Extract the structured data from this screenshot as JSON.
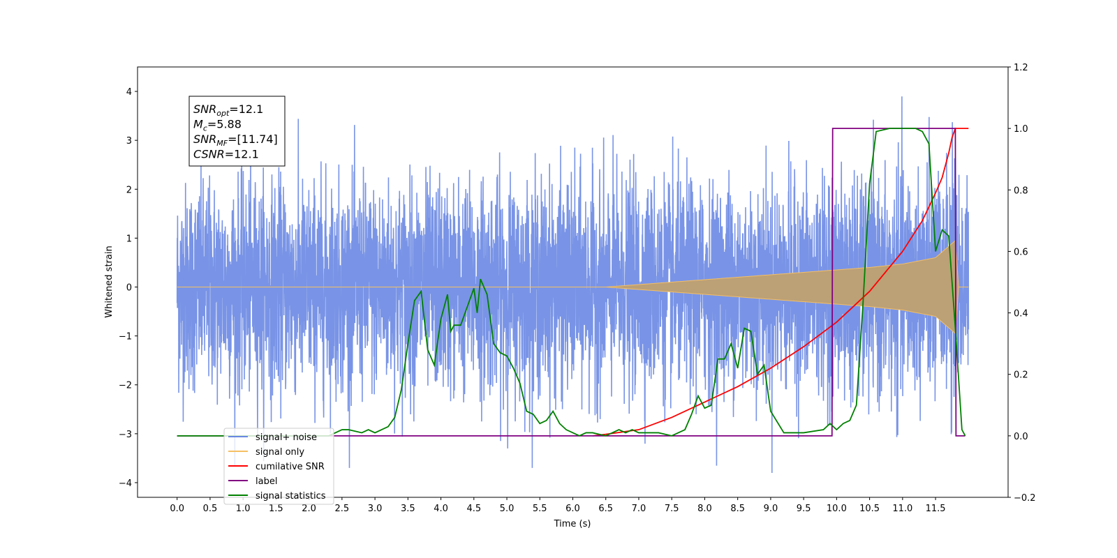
{
  "chart_data": {
    "type": "line",
    "title": "",
    "xlabel": "Time (s)",
    "ylabel": "Whitened strain",
    "xlim": [
      -0.6,
      12.6
    ],
    "ylim": [
      -4.3,
      4.5
    ],
    "ylim_right": [
      -0.2,
      1.2
    ],
    "x_ticks": [
      "0.0",
      "0.5",
      "1.0",
      "1.5",
      "2.0",
      "2.5",
      "3.0",
      "3.5",
      "4.0",
      "4.5",
      "5.0",
      "5.5",
      "6.0",
      "6.5",
      "7.0",
      "7.5",
      "8.0",
      "8.5",
      "9.0",
      "9.5",
      "10.0",
      "10.5",
      "11.0",
      "11.5"
    ],
    "y_ticks_left": [
      "4",
      "3",
      "2",
      "1",
      "0",
      "−1",
      "−2",
      "−3",
      "−4"
    ],
    "y_ticks_right": [
      "1.2",
      "1.0",
      "0.8",
      "0.6",
      "0.4",
      "0.2",
      "0.0",
      "−0.2"
    ],
    "grid": false,
    "legend_position": "lower-left",
    "colors": {
      "signal_noise": "#6a88e3",
      "signal_only": "#f5bf63",
      "cumulative_snr": "#ff0000",
      "label": "#800080",
      "signal_statistics": "#008000"
    },
    "annotation": [
      {
        "base": "SNR",
        "sub": "opt",
        "value": "=12.1"
      },
      {
        "base": "M",
        "sub": "c",
        "value": "=5.88"
      },
      {
        "base": "SNR",
        "sub": "MF",
        "value": "=[11.74]"
      },
      {
        "base": "CSNR",
        "sub": "",
        "value": "=12.1"
      }
    ],
    "series": [
      {
        "name": "signal+ noise",
        "axis": "left",
        "note": "dense noisy waveform",
        "x_range": [
          0.0,
          12.0
        ],
        "envelope_values": [
          -3.7,
          4.1
        ]
      },
      {
        "name": "signal only",
        "axis": "left",
        "note": "chirp starting ~6.5 s, amplitude growing to peak ~11.8 s",
        "x": [
          0.0,
          6.5,
          7.0,
          7.5,
          8.0,
          8.5,
          9.0,
          9.5,
          10.0,
          10.5,
          11.0,
          11.5,
          11.8,
          11.85,
          12.0
        ],
        "amplitude": [
          0.0,
          0.0,
          0.05,
          0.1,
          0.15,
          0.2,
          0.25,
          0.3,
          0.35,
          0.4,
          0.47,
          0.6,
          0.95,
          0.0,
          0.0
        ]
      },
      {
        "name": "cumilative SNR",
        "axis": "right",
        "x": [
          6.3,
          6.5,
          7.0,
          7.5,
          8.0,
          8.5,
          9.0,
          9.5,
          10.0,
          10.5,
          11.0,
          11.3,
          11.5,
          11.6,
          11.7,
          11.75,
          11.8,
          12.0
        ],
        "y": [
          0.0,
          0.005,
          0.02,
          0.06,
          0.11,
          0.16,
          0.22,
          0.29,
          0.37,
          0.47,
          0.6,
          0.7,
          0.79,
          0.84,
          0.92,
          0.97,
          1.0,
          1.0
        ]
      },
      {
        "name": "label",
        "axis": "right",
        "x": [
          0.0,
          9.93,
          9.94,
          11.8,
          11.81,
          11.95
        ],
        "y": [
          0.0,
          0.0,
          1.0,
          1.0,
          0.0,
          0.0
        ]
      },
      {
        "name": "signal statistics",
        "axis": "right",
        "x": [
          0.0,
          1.5,
          2.3,
          2.5,
          2.6,
          2.8,
          2.9,
          3.0,
          3.1,
          3.2,
          3.3,
          3.4,
          3.5,
          3.6,
          3.7,
          3.8,
          3.9,
          4.0,
          4.1,
          4.15,
          4.2,
          4.3,
          4.4,
          4.5,
          4.55,
          4.6,
          4.7,
          4.8,
          4.9,
          5.0,
          5.1,
          5.2,
          5.3,
          5.4,
          5.5,
          5.6,
          5.7,
          5.8,
          5.9,
          6.0,
          6.1,
          6.2,
          6.3,
          6.5,
          6.7,
          6.8,
          6.9,
          7.0,
          7.3,
          7.5,
          7.7,
          7.8,
          7.9,
          8.0,
          8.1,
          8.2,
          8.3,
          8.4,
          8.5,
          8.6,
          8.7,
          8.8,
          8.9,
          9.0,
          9.2,
          9.5,
          9.8,
          9.9,
          10.0,
          10.1,
          10.2,
          10.3,
          10.4,
          10.5,
          10.6,
          10.8,
          11.0,
          11.2,
          11.3,
          11.4,
          11.5,
          11.6,
          11.7,
          11.8,
          11.9,
          11.95
        ],
        "y": [
          0.0,
          0.0,
          0.0,
          0.02,
          0.02,
          0.01,
          0.02,
          0.01,
          0.02,
          0.03,
          0.06,
          0.15,
          0.3,
          0.44,
          0.47,
          0.28,
          0.23,
          0.38,
          0.46,
          0.34,
          0.36,
          0.36,
          0.42,
          0.48,
          0.4,
          0.51,
          0.46,
          0.3,
          0.27,
          0.26,
          0.22,
          0.17,
          0.08,
          0.07,
          0.04,
          0.05,
          0.08,
          0.04,
          0.02,
          0.01,
          0.0,
          0.01,
          0.01,
          0.0,
          0.02,
          0.01,
          0.02,
          0.01,
          0.01,
          0.0,
          0.02,
          0.07,
          0.13,
          0.09,
          0.1,
          0.25,
          0.25,
          0.3,
          0.22,
          0.35,
          0.34,
          0.2,
          0.23,
          0.08,
          0.01,
          0.01,
          0.02,
          0.04,
          0.02,
          0.04,
          0.05,
          0.1,
          0.43,
          0.82,
          0.99,
          1.0,
          1.0,
          1.0,
          0.99,
          0.95,
          0.6,
          0.67,
          0.65,
          0.35,
          0.02,
          0.0
        ]
      }
    ]
  }
}
